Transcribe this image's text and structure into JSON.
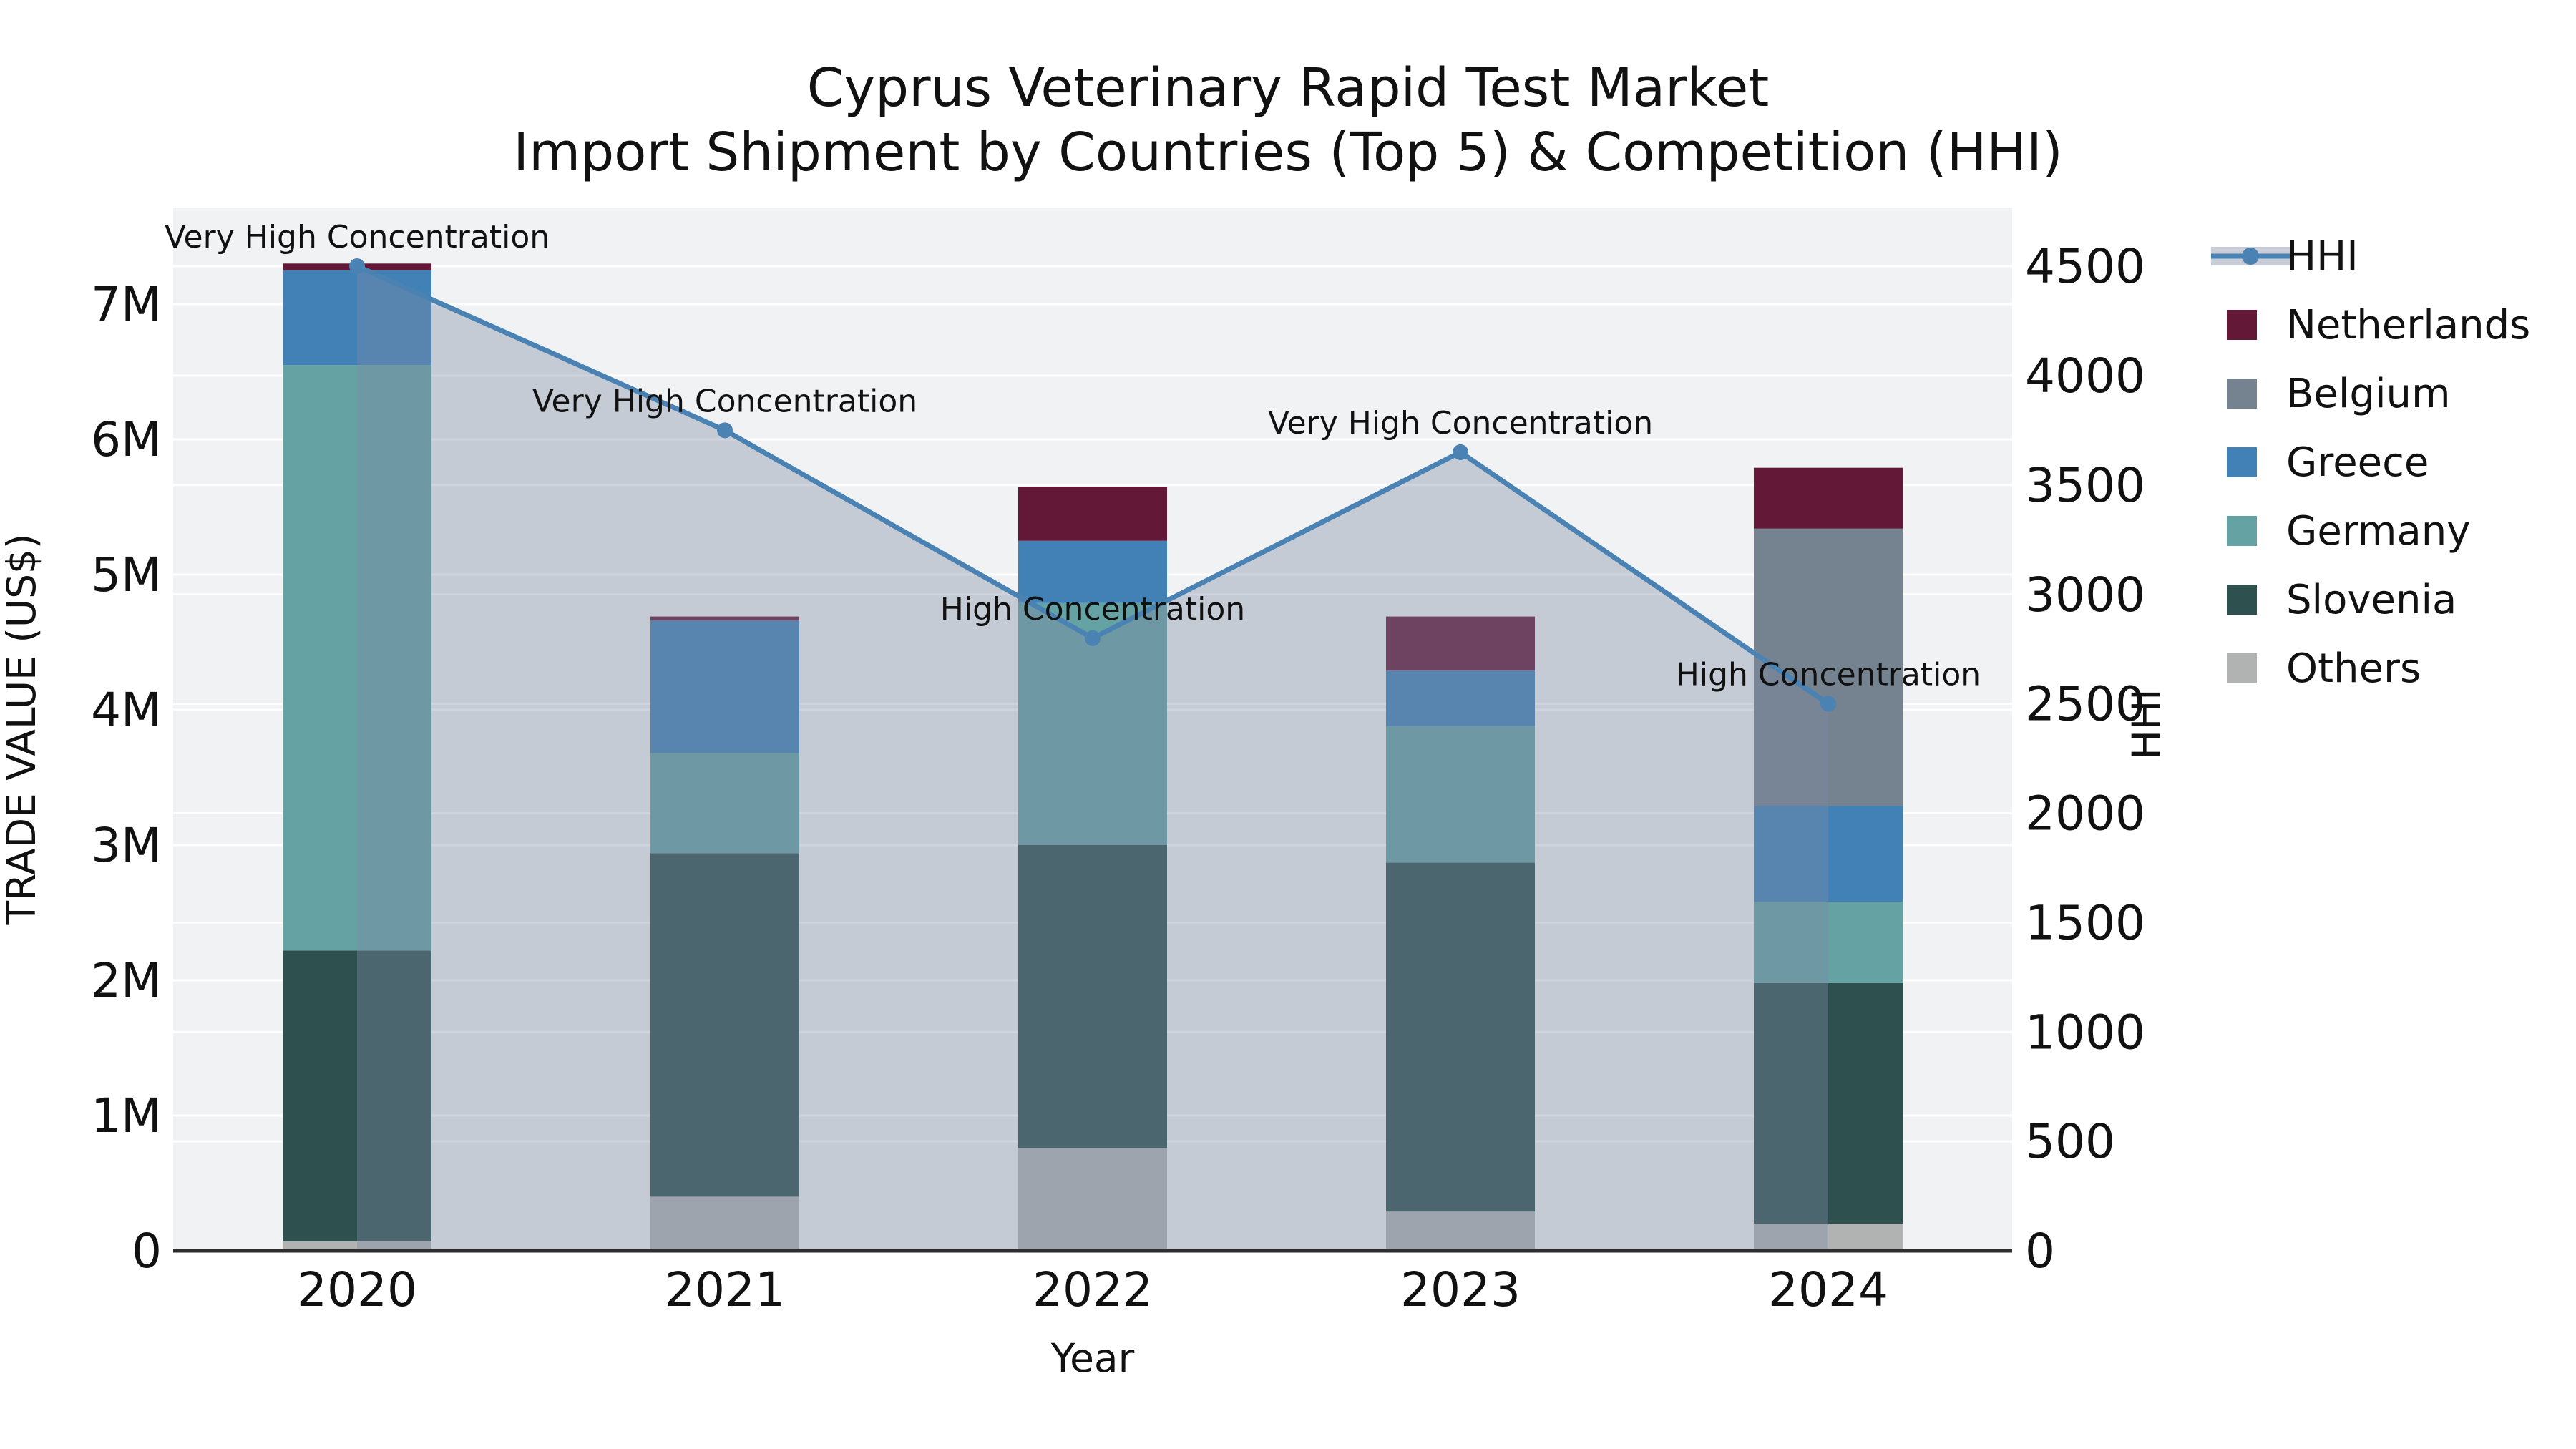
{
  "title": {
    "line1": "Cyprus Veterinary Rapid Test Market",
    "line2": "Import Shipment by Countries (Top 5) & Competition (HHI)"
  },
  "axes": {
    "x_label": "Year",
    "y_left_label": "TRADE VALUE (US$)",
    "y_right_label": "HHI",
    "y_left_ticks": [
      "0",
      "1M",
      "2M",
      "3M",
      "4M",
      "5M",
      "6M",
      "7M"
    ],
    "y_right_ticks": [
      "0",
      "500",
      "1000",
      "1500",
      "2000",
      "2500",
      "3000",
      "3500",
      "4000",
      "4500"
    ]
  },
  "legend": [
    {
      "label": "HHI",
      "type": "line",
      "color": "#4a83b3",
      "band": "#c8cdd7"
    },
    {
      "label": "Netherlands",
      "type": "patch",
      "color": "#641837"
    },
    {
      "label": "Belgium",
      "type": "patch",
      "color": "#75828f"
    },
    {
      "label": "Greece",
      "type": "patch",
      "color": "#4181b6"
    },
    {
      "label": "Germany",
      "type": "patch",
      "color": "#64a2a3"
    },
    {
      "label": "Slovenia",
      "type": "patch",
      "color": "#2e504e"
    },
    {
      "label": "Others",
      "type": "patch",
      "color": "#b1b3b2"
    }
  ],
  "colors": {
    "figure_bg": "#ffffff",
    "plot_bg": "#f1f2f3",
    "gridline": "rgba(255,255,255,0.95)",
    "bottom_spine": "#2e2e2e",
    "hhi_line": "#4a83b3",
    "hhi_area": "rgba(125,139,166,0.38)",
    "annotation_text": "#111111",
    "tick_text": "#111111"
  },
  "chart_data": {
    "type": "bar",
    "subtype": "stacked bars (trade value, left axis) + HHI line with shaded area (right axis)",
    "categories": [
      "2020",
      "2021",
      "2022",
      "2023",
      "2024"
    ],
    "value_unit": "US$ millions",
    "series": [
      {
        "name": "Others",
        "color": "#b1b3b2",
        "values": [
          0.07,
          0.4,
          0.76,
          0.29,
          0.2
        ]
      },
      {
        "name": "Slovenia",
        "color": "#2e504e",
        "values": [
          2.15,
          2.54,
          2.24,
          2.58,
          1.78
        ]
      },
      {
        "name": "Germany",
        "color": "#64a2a3",
        "values": [
          4.33,
          0.74,
          1.79,
          1.01,
          0.6
        ]
      },
      {
        "name": "Greece",
        "color": "#4181b6",
        "values": [
          0.7,
          0.98,
          0.46,
          0.41,
          0.71
        ]
      },
      {
        "name": "Belgium",
        "color": "#75828f",
        "values": [
          0.0,
          0.0,
          0.0,
          0.0,
          2.05
        ]
      },
      {
        "name": "Netherlands",
        "color": "#641837",
        "values": [
          0.05,
          0.03,
          0.4,
          0.4,
          0.45
        ]
      }
    ],
    "line": {
      "name": "HHI",
      "color": "#4a83b3",
      "values": [
        4500,
        3750,
        2800,
        3650,
        2500
      ]
    },
    "annotations": [
      {
        "category": "2020",
        "text": "Very High Concentration"
      },
      {
        "category": "2021",
        "text": "Very High Concentration"
      },
      {
        "category": "2022",
        "text": "High Concentration"
      },
      {
        "category": "2023",
        "text": "Very High Concentration"
      },
      {
        "category": "2024",
        "text": "High Concentration"
      }
    ],
    "ylim_left": [
      0,
      7.7
    ],
    "ylim_right": [
      0,
      4768
    ],
    "xlabel": "Year",
    "ylabel_left": "TRADE VALUE (US$)",
    "ylabel_right": "HHI",
    "grid": "horizontal white gridlines at 1M steps (left axis) and 500 steps (right axis)",
    "legend_position": "right, outside plot"
  }
}
